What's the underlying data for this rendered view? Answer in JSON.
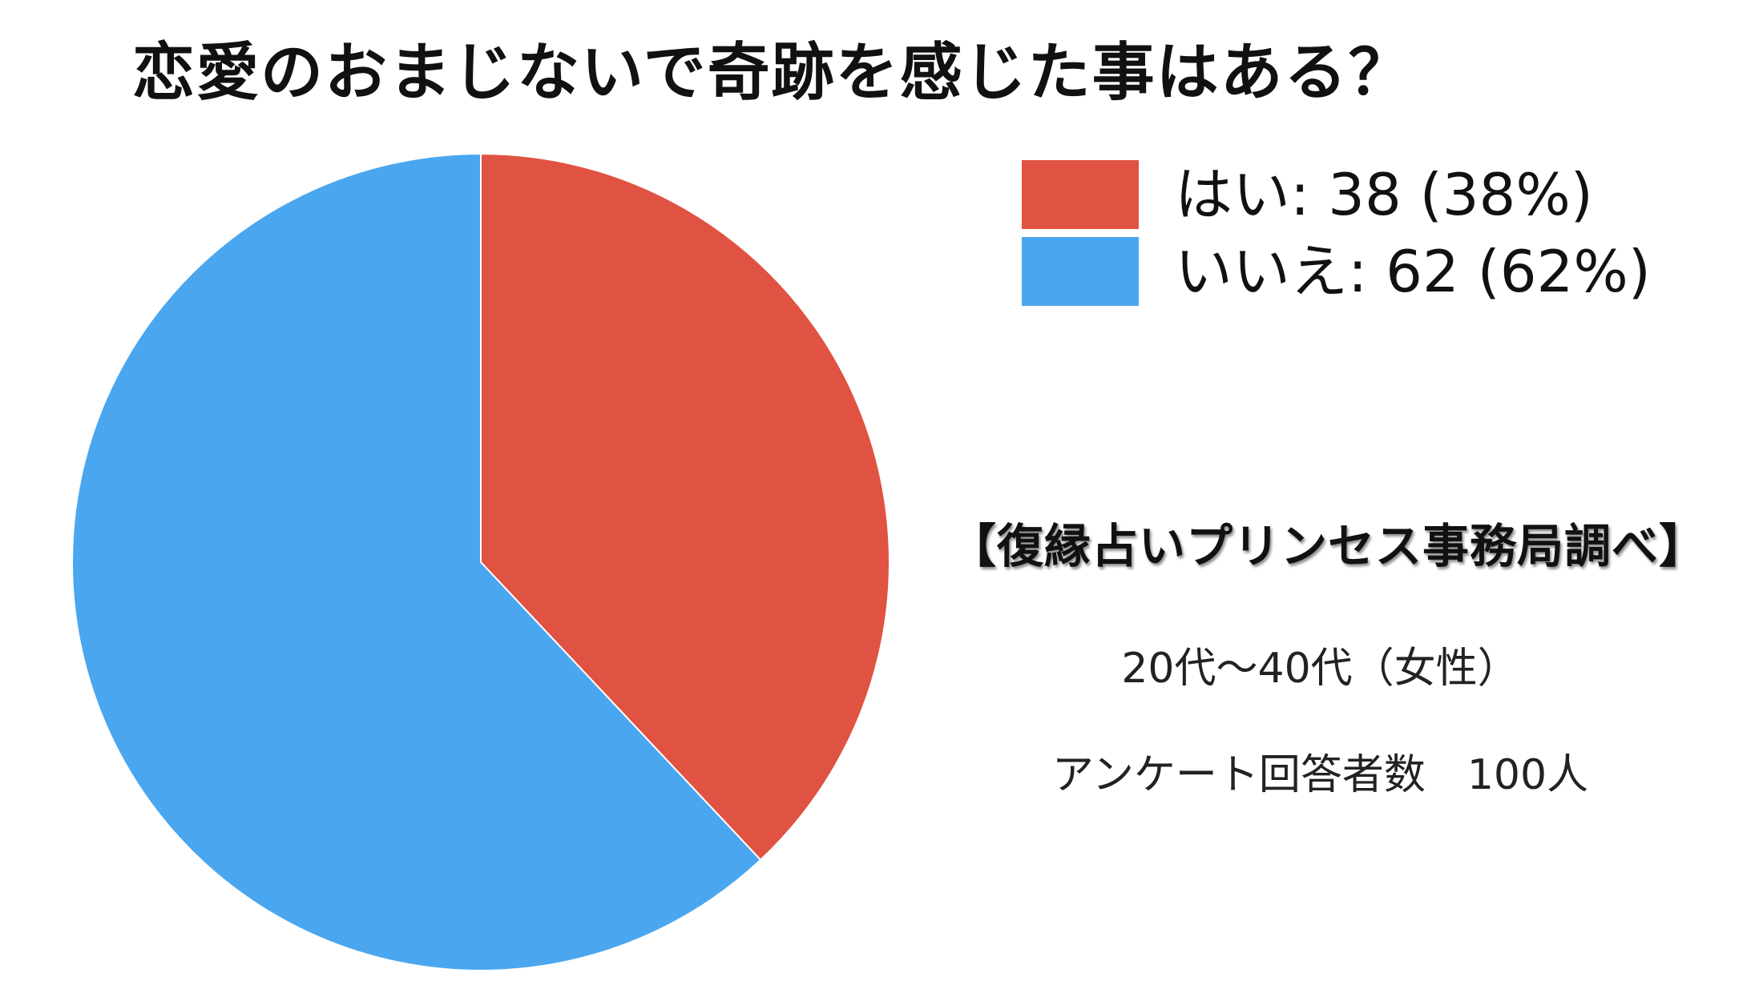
{
  "chart_data": {
    "type": "pie",
    "title": "恋愛のおまじないで奇跡を感じた事はある？",
    "slices": [
      {
        "label": "はい",
        "value": 38,
        "percent": 38,
        "color": "#e05241"
      },
      {
        "label": "いいえ",
        "value": 62,
        "percent": 62,
        "color": "#4aa6ee"
      }
    ],
    "legend_labels": [
      "はい: 38 (38%)",
      "いいえ: 62 (62%)"
    ],
    "legend_position": "top-right"
  },
  "notes": {
    "source": "【復縁占いプリンセス事務局調べ】",
    "demographic": "20代〜40代（女性）",
    "respondents": "アンケート回答者数　100人"
  }
}
